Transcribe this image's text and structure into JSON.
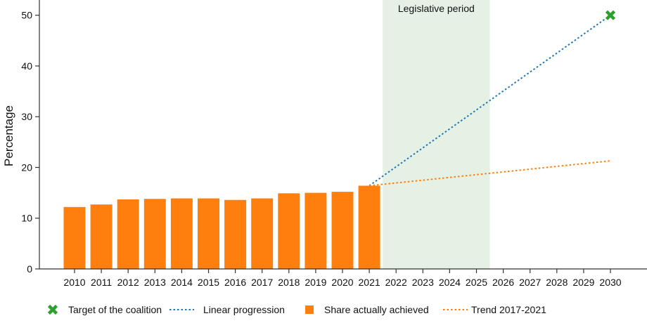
{
  "chart_data": {
    "type": "bar",
    "ylabel": "Percentage",
    "xlabel": "",
    "ylim": [
      0,
      53
    ],
    "yticks": [
      0,
      10,
      20,
      30,
      40,
      50
    ],
    "categories": [
      "2010",
      "2011",
      "2012",
      "2013",
      "2014",
      "2015",
      "2016",
      "2017",
      "2018",
      "2019",
      "2020",
      "2021",
      "2022",
      "2023",
      "2024",
      "2025",
      "2026",
      "2027",
      "2028",
      "2029",
      "2030"
    ],
    "bars": {
      "name": "Share actually achieved",
      "color": "#ff7f0e",
      "x": [
        "2010",
        "2011",
        "2012",
        "2013",
        "2014",
        "2015",
        "2016",
        "2017",
        "2018",
        "2019",
        "2020",
        "2021"
      ],
      "values": [
        12.2,
        12.7,
        13.7,
        13.8,
        13.9,
        13.9,
        13.6,
        13.9,
        14.9,
        15.0,
        15.2,
        16.4
      ]
    },
    "lines": [
      {
        "name": "Linear progression",
        "color": "#1f77b4",
        "style": "dotted",
        "x": [
          "2021",
          "2030"
        ],
        "values": [
          16.4,
          50
        ]
      },
      {
        "name": "Trend 2017-2021",
        "color": "#ff7f0e",
        "style": "dotted",
        "x": [
          "2021",
          "2030"
        ],
        "values": [
          16.4,
          21.3
        ]
      }
    ],
    "target": {
      "name": "Target of the coalition",
      "color": "#2ca02c",
      "marker": "x",
      "x": "2030",
      "value": 50
    },
    "shaded_region": {
      "label": "Legislative period",
      "from": "2022",
      "to": "2025",
      "color": "#e5f1e5"
    },
    "legend": {
      "placement": "bottom",
      "items": [
        {
          "label": "Target of the coalition",
          "kind": "marker-x",
          "color": "#2ca02c"
        },
        {
          "label": "Linear progression",
          "kind": "dotted-line",
          "color": "#1f77b4"
        },
        {
          "label": "Share actually achieved",
          "kind": "square",
          "color": "#ff7f0e"
        },
        {
          "label": "Trend 2017-2021",
          "kind": "dotted-line",
          "color": "#ff7f0e"
        }
      ]
    }
  }
}
